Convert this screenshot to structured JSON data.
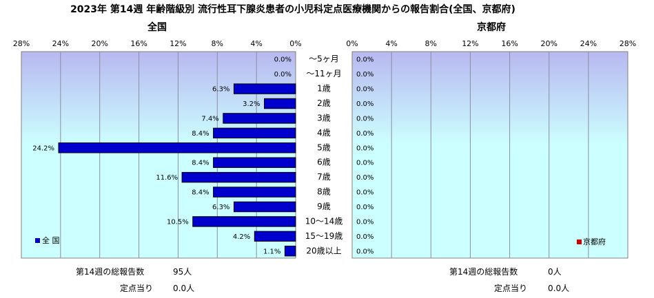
{
  "chart_data": {
    "type": "bar",
    "title": "2023年 第14週 年齢階級別 流行性耳下腺炎患者の小児科定点医療機関からの報告割合(全国、京都府)",
    "categories": [
      "～5ヶ月",
      "～11ヶ月",
      "1歳",
      "2歳",
      "3歳",
      "4歳",
      "5歳",
      "6歳",
      "7歳",
      "8歳",
      "9歳",
      "10～14歳",
      "15～19歳",
      "20歳以上"
    ],
    "xlim": [
      0,
      28
    ],
    "ticks": [
      "0%",
      "4%",
      "8%",
      "12%",
      "16%",
      "20%",
      "24%",
      "28%"
    ],
    "tick_values": [
      0,
      4,
      8,
      12,
      16,
      20,
      24,
      28
    ],
    "grid": true,
    "panels": [
      {
        "subtitle": "全国",
        "direction": "left",
        "legend": "全 国",
        "legend_placement": "bottom-left",
        "color": "#0000cc",
        "values": [
          0.0,
          0.0,
          6.3,
          3.2,
          7.4,
          8.4,
          24.2,
          8.4,
          11.6,
          8.4,
          6.3,
          10.5,
          4.2,
          1.1
        ],
        "labels": [
          "0.0%",
          "0.0%",
          "6.3%",
          "3.2%",
          "7.4%",
          "8.4%",
          "24.2%",
          "8.4%",
          "11.6%",
          "8.4%",
          "6.3%",
          "10.5%",
          "4.2%",
          "1.1%"
        ]
      },
      {
        "subtitle": "京都府",
        "direction": "right",
        "legend": "京都府",
        "legend_placement": "bottom-right",
        "color": "#cc0000",
        "values": [
          0.0,
          0.0,
          0.0,
          0.0,
          0.0,
          0.0,
          0.0,
          0.0,
          0.0,
          0.0,
          0.0,
          0.0,
          0.0,
          0.0
        ],
        "labels": [
          "0.0%",
          "0.0%",
          "0.0%",
          "0.0%",
          "0.0%",
          "0.0%",
          "0.0%",
          "0.0%",
          "0.0%",
          "0.0%",
          "0.0%",
          "0.0%",
          "0.0%",
          "0.0%"
        ]
      }
    ]
  },
  "footer": {
    "left": {
      "total_label": "第14週の総報告数",
      "total_value": "95人",
      "per_label": "定点当り",
      "per_value": "0.0人"
    },
    "right": {
      "total_label": "第14週の総報告数",
      "total_value": "0人",
      "per_label": "定点当り",
      "per_value": "0.0人"
    }
  },
  "colors": {
    "plot_top": "#b8b8f0",
    "plot_bottom": "#ccffff",
    "gridline": "#8c8ca0"
  }
}
